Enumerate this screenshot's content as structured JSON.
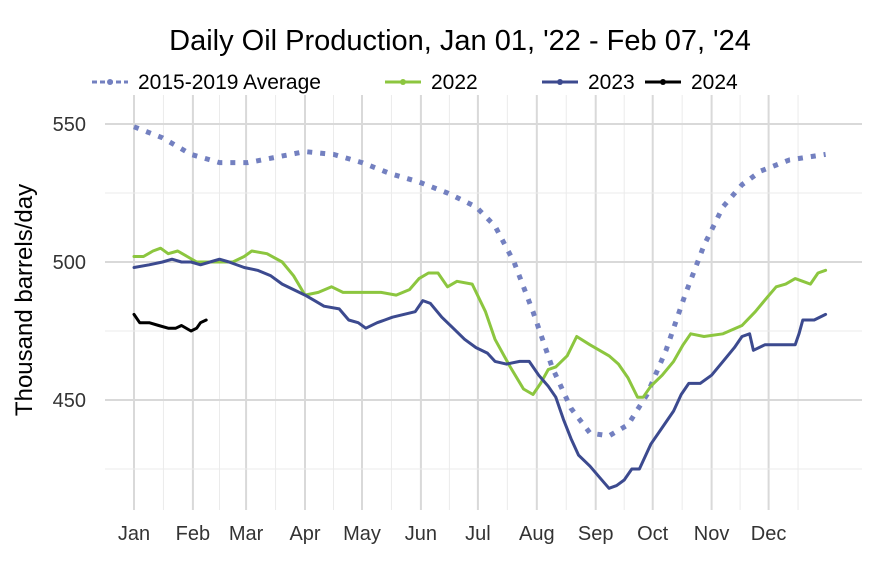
{
  "chart_data": {
    "type": "line",
    "title": "Daily Oil Production, Jan 01, '22 - Feb 07, '24",
    "xlabel": "",
    "ylabel": "Thousand barrels/day",
    "ylim": [
      405,
      555
    ],
    "yticks": [
      450,
      500,
      550
    ],
    "months": [
      "Jan",
      "Feb",
      "Mar",
      "Apr",
      "May",
      "Jun",
      "Jul",
      "Aug",
      "Sep",
      "Oct",
      "Nov",
      "Dec"
    ],
    "grid": true,
    "legend_position": "top",
    "series": [
      {
        "name": "2015-2019 Average",
        "color": "#7380c0",
        "dash": "dotted",
        "points": [
          [
            0,
            549
          ],
          [
            15,
            545
          ],
          [
            30,
            539
          ],
          [
            45,
            536
          ],
          [
            60,
            536
          ],
          [
            75,
            538
          ],
          [
            90,
            540
          ],
          [
            105,
            539
          ],
          [
            120,
            536
          ],
          [
            135,
            532
          ],
          [
            150,
            529
          ],
          [
            165,
            525
          ],
          [
            180,
            520
          ],
          [
            190,
            513
          ],
          [
            200,
            500
          ],
          [
            210,
            482
          ],
          [
            220,
            462
          ],
          [
            230,
            447
          ],
          [
            240,
            438
          ],
          [
            250,
            437
          ],
          [
            260,
            441
          ],
          [
            270,
            452
          ],
          [
            280,
            468
          ],
          [
            290,
            488
          ],
          [
            300,
            506
          ],
          [
            310,
            520
          ],
          [
            320,
            528
          ],
          [
            330,
            533
          ],
          [
            345,
            537
          ],
          [
            364,
            539
          ]
        ]
      },
      {
        "name": "2022",
        "color": "#8cc63f",
        "dash": "solid",
        "points": [
          [
            0,
            502
          ],
          [
            5,
            502
          ],
          [
            10,
            504
          ],
          [
            14,
            505
          ],
          [
            18,
            503
          ],
          [
            23,
            504
          ],
          [
            28,
            502
          ],
          [
            33,
            500
          ],
          [
            38,
            500
          ],
          [
            45,
            500
          ],
          [
            52,
            500
          ],
          [
            58,
            502
          ],
          [
            62,
            504
          ],
          [
            70,
            503
          ],
          [
            78,
            500
          ],
          [
            84,
            495
          ],
          [
            90,
            488
          ],
          [
            97,
            489
          ],
          [
            104,
            491
          ],
          [
            110,
            489
          ],
          [
            120,
            489
          ],
          [
            130,
            489
          ],
          [
            138,
            488
          ],
          [
            145,
            490
          ],
          [
            150,
            494
          ],
          [
            155,
            496
          ],
          [
            160,
            496
          ],
          [
            165,
            491
          ],
          [
            170,
            493
          ],
          [
            178,
            492
          ],
          [
            185,
            482
          ],
          [
            190,
            472
          ],
          [
            198,
            462
          ],
          [
            205,
            454
          ],
          [
            210,
            452
          ],
          [
            214,
            456
          ],
          [
            218,
            461
          ],
          [
            222,
            462
          ],
          [
            228,
            466
          ],
          [
            233,
            473
          ],
          [
            240,
            470
          ],
          [
            250,
            466
          ],
          [
            255,
            463
          ],
          [
            260,
            458
          ],
          [
            265,
            451
          ],
          [
            268,
            451
          ],
          [
            272,
            455
          ],
          [
            278,
            459
          ],
          [
            284,
            464
          ],
          [
            289,
            470
          ],
          [
            293,
            474
          ],
          [
            300,
            473
          ],
          [
            310,
            474
          ],
          [
            320,
            477
          ],
          [
            327,
            482
          ],
          [
            333,
            487
          ],
          [
            338,
            491
          ],
          [
            343,
            492
          ],
          [
            348,
            494
          ],
          [
            352,
            493
          ],
          [
            356,
            492
          ],
          [
            360,
            496
          ],
          [
            364,
            497
          ]
        ]
      },
      {
        "name": "2023",
        "color": "#3c4a8f",
        "dash": "solid",
        "points": [
          [
            0,
            498
          ],
          [
            8,
            499
          ],
          [
            15,
            500
          ],
          [
            20,
            501
          ],
          [
            25,
            500
          ],
          [
            30,
            500
          ],
          [
            35,
            499
          ],
          [
            40,
            500
          ],
          [
            45,
            501
          ],
          [
            50,
            500
          ],
          [
            58,
            498
          ],
          [
            65,
            497
          ],
          [
            72,
            495
          ],
          [
            78,
            492
          ],
          [
            84,
            490
          ],
          [
            90,
            488
          ],
          [
            95,
            486
          ],
          [
            100,
            484
          ],
          [
            108,
            483
          ],
          [
            113,
            479
          ],
          [
            118,
            478
          ],
          [
            122,
            476
          ],
          [
            128,
            478
          ],
          [
            132,
            479
          ],
          [
            136,
            480
          ],
          [
            142,
            481
          ],
          [
            148,
            482
          ],
          [
            152,
            486
          ],
          [
            156,
            485
          ],
          [
            162,
            480
          ],
          [
            168,
            476
          ],
          [
            174,
            472
          ],
          [
            180,
            469
          ],
          [
            186,
            467
          ],
          [
            190,
            464
          ],
          [
            196,
            463
          ],
          [
            203,
            464
          ],
          [
            208,
            464
          ],
          [
            213,
            459
          ],
          [
            218,
            455
          ],
          [
            222,
            451
          ],
          [
            226,
            443
          ],
          [
            230,
            436
          ],
          [
            234,
            430
          ],
          [
            240,
            426
          ],
          [
            245,
            422
          ],
          [
            250,
            418
          ],
          [
            254,
            419
          ],
          [
            258,
            421
          ],
          [
            262,
            425
          ],
          [
            266,
            425
          ],
          [
            272,
            434
          ],
          [
            278,
            440
          ],
          [
            284,
            446
          ],
          [
            288,
            452
          ],
          [
            292,
            456
          ],
          [
            298,
            456
          ],
          [
            304,
            459
          ],
          [
            310,
            464
          ],
          [
            316,
            469
          ],
          [
            320,
            473
          ],
          [
            324,
            474
          ],
          [
            326,
            468
          ],
          [
            332,
            470
          ],
          [
            340,
            470
          ],
          [
            348,
            470
          ],
          [
            350,
            474
          ],
          [
            352,
            479
          ],
          [
            358,
            479
          ],
          [
            364,
            481
          ]
        ]
      },
      {
        "name": "2024",
        "color": "#000000",
        "dash": "solid",
        "points": [
          [
            0,
            481
          ],
          [
            3,
            478
          ],
          [
            8,
            478
          ],
          [
            13,
            477
          ],
          [
            18,
            476
          ],
          [
            22,
            476
          ],
          [
            25,
            477
          ],
          [
            30,
            475
          ],
          [
            33,
            476
          ],
          [
            35,
            478
          ],
          [
            38,
            479
          ]
        ]
      }
    ]
  }
}
